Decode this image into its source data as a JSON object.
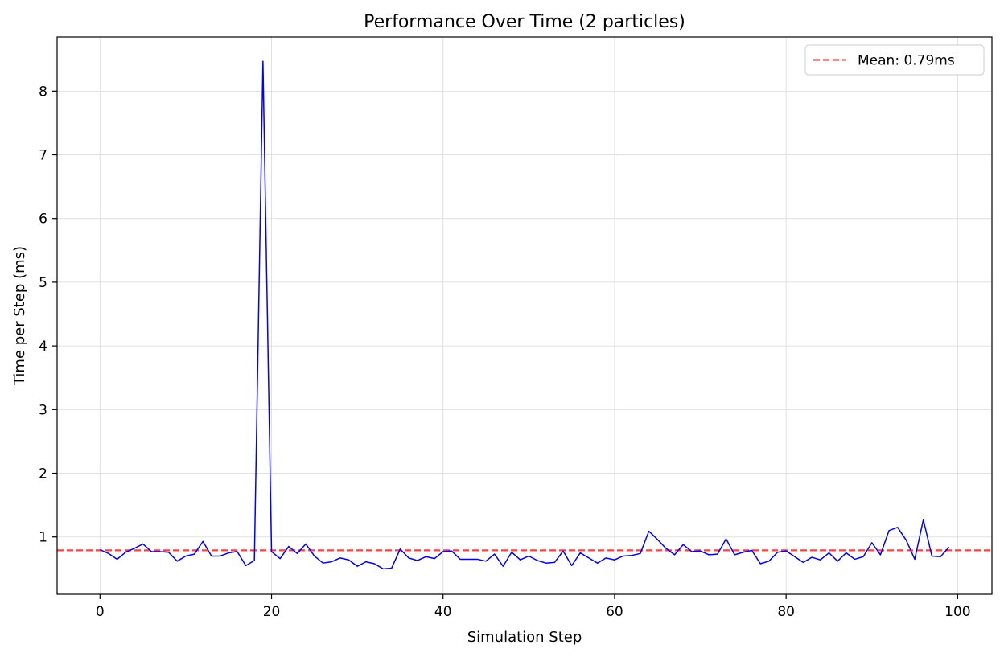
{
  "chart_data": {
    "type": "line",
    "title": "Performance Over Time (2 particles)",
    "xlabel": "Simulation Step",
    "ylabel": "Time per Step (ms)",
    "xlim": [
      -5,
      104
    ],
    "ylim": [
      0.1,
      8.85
    ],
    "xticks": [
      0,
      20,
      40,
      60,
      80,
      100
    ],
    "yticks": [
      1,
      2,
      3,
      4,
      5,
      6,
      7,
      8
    ],
    "grid": true,
    "legend_position": "top-right",
    "series": [
      {
        "name": "",
        "color": "#0000ff",
        "x": [
          0,
          1,
          2,
          3,
          4,
          5,
          6,
          7,
          8,
          9,
          10,
          11,
          12,
          13,
          14,
          15,
          16,
          17,
          18,
          19,
          20,
          21,
          22,
          23,
          24,
          25,
          26,
          27,
          28,
          29,
          30,
          31,
          32,
          33,
          34,
          35,
          36,
          37,
          38,
          39,
          40,
          41,
          42,
          43,
          44,
          45,
          46,
          47,
          48,
          49,
          50,
          51,
          52,
          53,
          54,
          55,
          56,
          57,
          58,
          59,
          60,
          61,
          62,
          63,
          64,
          65,
          66,
          67,
          68,
          69,
          70,
          71,
          72,
          73,
          74,
          75,
          76,
          77,
          78,
          79,
          80,
          81,
          82,
          83,
          84,
          85,
          86,
          87,
          88,
          89,
          90,
          91,
          92,
          93,
          94,
          95,
          96,
          97,
          98,
          99
        ],
        "y": [
          0.8,
          0.74,
          0.65,
          0.76,
          0.82,
          0.89,
          0.77,
          0.77,
          0.76,
          0.62,
          0.7,
          0.73,
          0.93,
          0.7,
          0.7,
          0.75,
          0.77,
          0.55,
          0.63,
          8.47,
          0.77,
          0.66,
          0.85,
          0.74,
          0.89,
          0.7,
          0.59,
          0.61,
          0.67,
          0.64,
          0.54,
          0.61,
          0.58,
          0.5,
          0.51,
          0.81,
          0.67,
          0.63,
          0.69,
          0.66,
          0.77,
          0.78,
          0.65,
          0.65,
          0.65,
          0.62,
          0.73,
          0.54,
          0.76,
          0.64,
          0.7,
          0.63,
          0.59,
          0.6,
          0.78,
          0.55,
          0.75,
          0.67,
          0.59,
          0.67,
          0.64,
          0.7,
          0.71,
          0.74,
          1.09,
          0.96,
          0.82,
          0.72,
          0.88,
          0.77,
          0.78,
          0.72,
          0.73,
          0.97,
          0.72,
          0.76,
          0.79,
          0.58,
          0.62,
          0.76,
          0.78,
          0.69,
          0.6,
          0.68,
          0.64,
          0.75,
          0.62,
          0.75,
          0.65,
          0.69,
          0.91,
          0.72,
          1.1,
          1.15,
          0.95,
          0.65,
          1.27,
          0.7,
          0.69,
          0.84
        ]
      }
    ],
    "reference_lines": [
      {
        "orientation": "horizontal",
        "value": 0.79,
        "color": "#ff4040",
        "style": "dashed",
        "label": "Mean: 0.79ms"
      }
    ]
  }
}
